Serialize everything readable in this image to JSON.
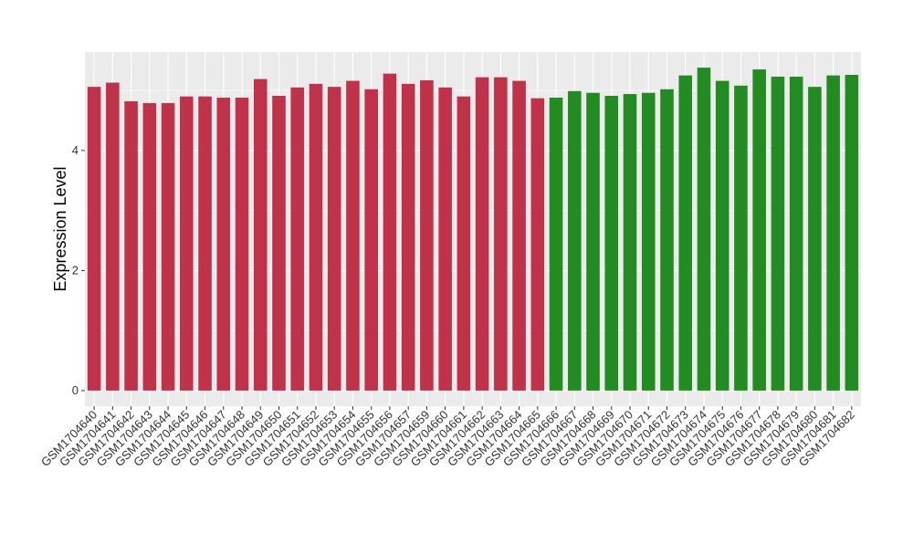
{
  "chart_data": {
    "type": "bar",
    "y_label": "Expression Level",
    "categories": [
      "GSM1704640",
      "GSM1704641",
      "GSM1704642",
      "GSM1704643",
      "GSM1704644",
      "GSM1704645",
      "GSM1704646",
      "GSM1704647",
      "GSM1704648",
      "GSM1704649",
      "GSM1704650",
      "GSM1704651",
      "GSM1704652",
      "GSM1704653",
      "GSM1704654",
      "GSM1704655",
      "GSM1704656",
      "GSM1704657",
      "GSM1704659",
      "GSM1704660",
      "GSM1704661",
      "GSM1704662",
      "GSM1704663",
      "GSM1704664",
      "GSM1704665",
      "GSM1704666",
      "GSM1704667",
      "GSM1704668",
      "GSM1704669",
      "GSM1704670",
      "GSM1704671",
      "GSM1704672",
      "GSM1704673",
      "GSM1704674",
      "GSM1704675",
      "GSM1704676",
      "GSM1704677",
      "GSM1704678",
      "GSM1704679",
      "GSM1704680",
      "GSM1704681",
      "GSM1704682"
    ],
    "values": [
      5.06,
      5.13,
      4.82,
      4.79,
      4.79,
      4.9,
      4.9,
      4.88,
      4.88,
      5.19,
      4.91,
      5.05,
      5.11,
      5.06,
      5.16,
      5.02,
      5.28,
      5.11,
      5.17,
      5.05,
      4.9,
      5.22,
      5.22,
      5.16,
      4.87,
      4.88,
      4.99,
      4.96,
      4.91,
      4.94,
      4.96,
      5.02,
      5.25,
      5.38,
      5.16,
      5.08,
      5.35,
      5.23,
      5.23,
      5.06,
      5.25,
      5.26
    ],
    "colors": [
      "#c0314a",
      "#c0314a",
      "#c0314a",
      "#c0314a",
      "#c0314a",
      "#c0314a",
      "#c0314a",
      "#c0314a",
      "#c0314a",
      "#c0314a",
      "#c0314a",
      "#c0314a",
      "#c0314a",
      "#c0314a",
      "#c0314a",
      "#c0314a",
      "#c0314a",
      "#c0314a",
      "#c0314a",
      "#c0314a",
      "#c0314a",
      "#c0314a",
      "#c0314a",
      "#c0314a",
      "#c0314a",
      "#228b22",
      "#228b22",
      "#228b22",
      "#228b22",
      "#228b22",
      "#228b22",
      "#228b22",
      "#228b22",
      "#228b22",
      "#228b22",
      "#228b22",
      "#228b22",
      "#228b22",
      "#228b22",
      "#228b22",
      "#228b22",
      "#228b22"
    ],
    "ylim": [
      -0.26,
      5.64
    ],
    "yticks": [
      0,
      2,
      4
    ],
    "grid": true
  }
}
